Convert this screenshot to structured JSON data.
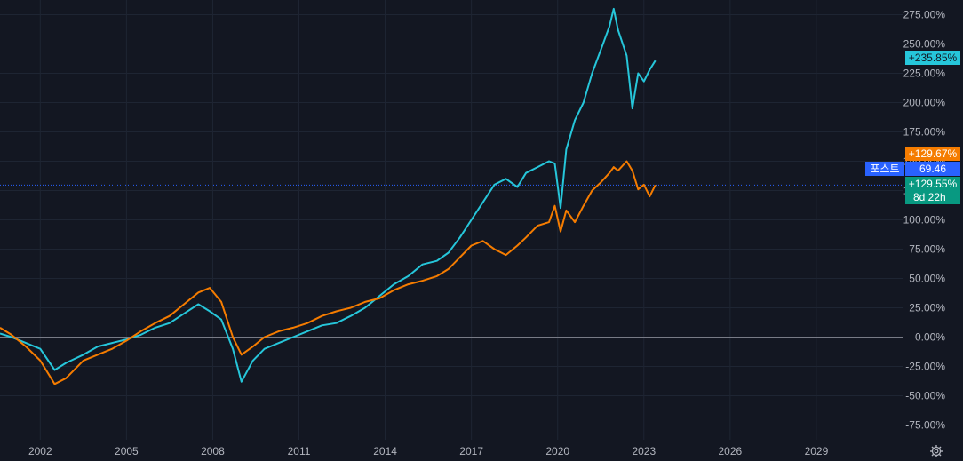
{
  "chart_data": {
    "type": "line",
    "title": "",
    "xlabel": "",
    "ylabel": "",
    "ylim": [
      -87.5,
      287.5
    ],
    "xlim": [
      2000.6,
      2032.0
    ],
    "grid": true,
    "x_ticks": [
      "2002",
      "2005",
      "2008",
      "2011",
      "2014",
      "2017",
      "2020",
      "2023",
      "2026",
      "2029"
    ],
    "y_ticks": [
      "275.00%",
      "250.00%",
      "225.00%",
      "200.00%",
      "175.00%",
      "150.00%",
      "125.00%",
      "100.00%",
      "75.00%",
      "50.00%",
      "25.00%",
      "0.00%",
      "-25.00%",
      "-50.00%",
      "-75.00%"
    ],
    "series": [
      {
        "color": "#26c6da",
        "x": [
          2000.6,
          2001.0,
          2001.5,
          2002.0,
          2002.5,
          2002.9,
          2003.5,
          2004.0,
          2004.5,
          2005.0,
          2005.5,
          2006.0,
          2006.5,
          2007.0,
          2007.5,
          2007.9,
          2008.3,
          2008.7,
          2009.0,
          2009.4,
          2009.8,
          2010.3,
          2010.8,
          2011.3,
          2011.8,
          2012.3,
          2012.8,
          2013.3,
          2013.8,
          2014.3,
          2014.8,
          2015.3,
          2015.8,
          2016.2,
          2016.6,
          2017.0,
          2017.4,
          2017.8,
          2018.2,
          2018.6,
          2018.9,
          2019.3,
          2019.7,
          2019.9,
          2020.1,
          2020.3,
          2020.6,
          2020.9,
          2021.2,
          2021.5,
          2021.8,
          2021.95,
          2022.1,
          2022.4,
          2022.6,
          2022.8,
          2023.0,
          2023.2,
          2023.4
        ],
        "values": [
          3,
          0,
          -5,
          -10,
          -28,
          -22,
          -15,
          -8,
          -5,
          -2,
          2,
          8,
          12,
          20,
          28,
          22,
          15,
          -10,
          -38,
          -20,
          -10,
          -5,
          0,
          5,
          10,
          12,
          18,
          25,
          35,
          45,
          52,
          62,
          65,
          72,
          85,
          100,
          115,
          130,
          135,
          128,
          140,
          145,
          150,
          148,
          110,
          160,
          185,
          200,
          225,
          245,
          265,
          280,
          262,
          240,
          195,
          225,
          218,
          228,
          235.85
        ]
      },
      {
        "color": "#f57c00",
        "x": [
          2000.6,
          2001.0,
          2001.5,
          2002.0,
          2002.5,
          2002.9,
          2003.5,
          2004.0,
          2004.5,
          2005.0,
          2005.5,
          2006.0,
          2006.5,
          2007.0,
          2007.5,
          2007.9,
          2008.3,
          2008.7,
          2009.0,
          2009.4,
          2009.8,
          2010.3,
          2010.8,
          2011.3,
          2011.8,
          2012.3,
          2012.8,
          2013.3,
          2013.8,
          2014.3,
          2014.8,
          2015.3,
          2015.8,
          2016.2,
          2016.6,
          2017.0,
          2017.4,
          2017.8,
          2018.2,
          2018.6,
          2018.9,
          2019.3,
          2019.7,
          2019.9,
          2020.1,
          2020.3,
          2020.6,
          2020.9,
          2021.2,
          2021.5,
          2021.8,
          2021.95,
          2022.1,
          2022.4,
          2022.6,
          2022.8,
          2023.0,
          2023.2,
          2023.4
        ],
        "values": [
          8,
          2,
          -8,
          -20,
          -40,
          -35,
          -20,
          -15,
          -10,
          -3,
          5,
          12,
          18,
          28,
          38,
          42,
          30,
          0,
          -15,
          -8,
          0,
          5,
          8,
          12,
          18,
          22,
          25,
          30,
          33,
          40,
          45,
          48,
          52,
          58,
          68,
          78,
          82,
          75,
          70,
          78,
          85,
          95,
          98,
          112,
          90,
          108,
          98,
          112,
          125,
          132,
          140,
          145,
          142,
          150,
          142,
          126,
          130,
          120,
          129.67
        ]
      }
    ],
    "zero_line": 0
  },
  "price_labels": {
    "cyan": "+235.85%",
    "orange": "+129.67%",
    "symbol_tag": "포스트",
    "price": "69.46",
    "change": "+129.55%",
    "countdown": "8d 22h"
  },
  "colors": {
    "background": "#131722",
    "grid": "#1e2533",
    "tick_text": "#b2b5be",
    "cyan_line": "#26c6da",
    "orange_line": "#f57c00",
    "blue_tag": "#2962ff",
    "green_tag": "#089981",
    "dotted_line": "#2962ff"
  },
  "footer": {
    "settings_icon": "gear-icon"
  }
}
